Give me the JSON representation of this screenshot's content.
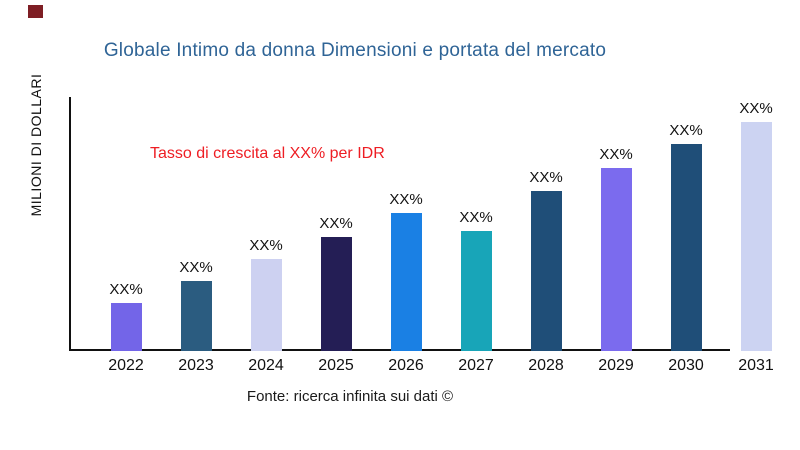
{
  "page": {
    "background": "#ffffff",
    "logo_color": "#7e1e24"
  },
  "title": {
    "text": "Globale Intimo da donna Dimensioni e portata del mercato",
    "color": "#2f6496"
  },
  "growth_note": {
    "text": "Tasso di crescita al XX% per IDR",
    "color": "#ee1d23"
  },
  "source": {
    "text": "Fonte: ricerca infinita sui dati ©"
  },
  "chart_data": {
    "type": "bar",
    "title": "Globale Intimo da donna Dimensioni e portata del mercato",
    "xlabel": "",
    "ylabel": "MILIONI DI DOLLARI",
    "categories": [
      "2022",
      "2023",
      "2024",
      "2025",
      "2026",
      "2027",
      "2028",
      "2029",
      "2030",
      "2031"
    ],
    "value_labels": [
      "XX%",
      "XX%",
      "XX%",
      "XX%",
      "XX%",
      "XX%",
      "XX%",
      "XX%",
      "XX%",
      "XX%"
    ],
    "relative_heights": [
      48,
      70,
      92,
      114,
      138,
      120,
      160,
      183,
      207,
      229
    ],
    "bar_colors": [
      "#7365e8",
      "#2b5c80",
      "#cdd1f1",
      "#241e55",
      "#1a80e4",
      "#18a5b8",
      "#1f4e78",
      "#7b6bee",
      "#1f4e78",
      "#ccd3f2"
    ],
    "annotation": "Tasso di crescita al XX% per IDR",
    "grid": false,
    "legend": false,
    "y_tick_labels_shown": false,
    "axis_color": "#111111"
  }
}
